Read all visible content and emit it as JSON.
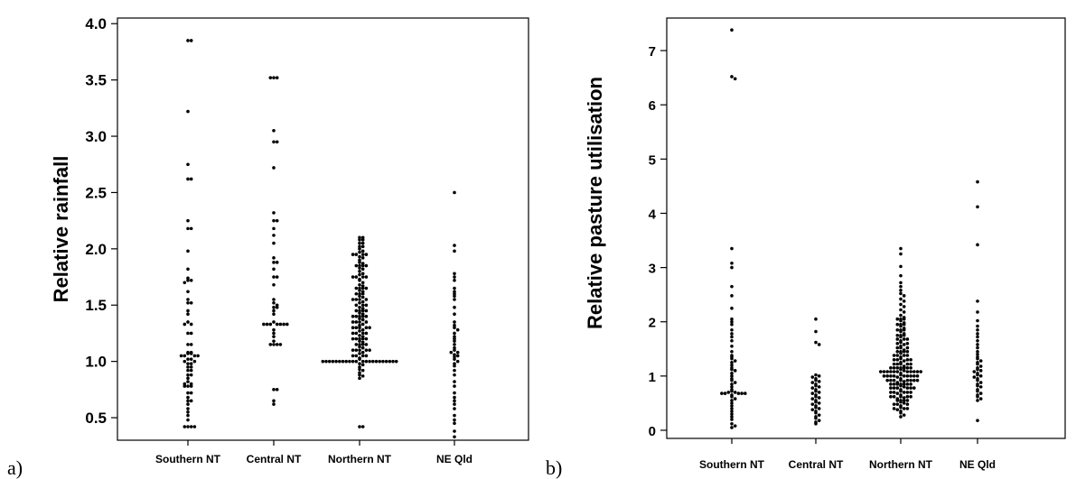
{
  "chart_data": [
    {
      "type": "scatter",
      "panel_label": "a)",
      "ylabel": "Relative rainfall",
      "categories": [
        "Southern NT",
        "Central NT",
        "Northern NT",
        "NE Qld"
      ],
      "ylim": [
        0.3,
        4.05
      ],
      "yticks": [
        "0.5",
        "1.0",
        "1.5",
        "2.0",
        "2.5",
        "3.0",
        "3.5",
        "4.0"
      ],
      "grid": false,
      "series": [
        {
          "values": [
            3.85,
            3.85,
            3.22,
            2.75,
            2.62,
            2.62,
            2.25,
            2.18,
            2.18,
            1.98,
            1.82,
            1.74,
            1.72,
            1.72,
            1.7,
            1.62,
            1.55,
            1.52,
            1.52,
            1.45,
            1.42,
            1.35,
            1.33,
            1.33,
            1.25,
            1.25,
            1.15,
            1.15,
            1.08,
            1.08,
            1.07,
            1.07,
            1.05,
            1.05,
            1.05,
            1.05,
            1.02,
            1.02,
            1.0,
            1.0,
            0.98,
            0.98,
            0.95,
            0.95,
            0.92,
            0.92,
            0.88,
            0.88,
            0.85,
            0.82,
            0.8,
            0.8,
            0.78,
            0.78,
            0.78,
            0.72,
            0.72,
            0.68,
            0.65,
            0.65,
            0.62,
            0.58,
            0.55,
            0.52,
            0.48,
            0.42,
            0.42,
            0.42,
            0.42
          ]
        },
        {
          "values": [
            3.52,
            3.52,
            3.52,
            3.05,
            2.95,
            2.95,
            2.72,
            2.32,
            2.25,
            2.25,
            2.18,
            2.12,
            2.05,
            1.92,
            1.88,
            1.88,
            1.82,
            1.75,
            1.75,
            1.68,
            1.55,
            1.52,
            1.5,
            1.48,
            1.48,
            1.45,
            1.42,
            1.35,
            1.33,
            1.33,
            1.33,
            1.33,
            1.33,
            1.33,
            1.33,
            1.28,
            1.25,
            1.22,
            1.18,
            1.15,
            1.15,
            1.15,
            1.15,
            0.75,
            0.75,
            0.65,
            0.62
          ]
        },
        {
          "values": [
            2.1,
            2.1,
            2.08,
            2.08,
            2.05,
            2.02,
            2.02,
            2.0,
            1.98,
            1.97,
            1.95,
            1.93,
            1.92,
            1.9,
            1.88,
            1.87,
            1.85,
            1.83,
            1.82,
            1.8,
            1.78,
            1.77,
            1.75,
            1.73,
            1.72,
            1.7,
            1.68,
            1.67,
            1.65,
            1.63,
            1.62,
            1.6,
            1.58,
            1.57,
            1.55,
            1.53,
            1.52,
            1.5,
            1.48,
            1.47,
            1.45,
            1.43,
            1.42,
            1.4,
            1.38,
            1.37,
            1.35,
            1.33,
            1.32,
            1.3,
            1.28,
            1.27,
            1.25,
            1.23,
            1.22,
            1.2,
            1.18,
            1.17,
            1.15,
            1.13,
            1.12,
            1.1,
            1.08,
            1.07,
            1.05,
            1.03,
            1.02,
            1.0,
            0.98,
            0.97,
            0.95,
            0.93,
            0.92,
            0.9,
            0.88,
            0.87,
            0.85,
            0.42,
            0.42,
            2.05,
            1.95,
            1.85,
            1.75,
            1.65,
            1.55,
            1.45,
            1.35,
            1.25,
            1.15,
            1.05,
            1.0,
            1.0,
            1.0,
            1.0,
            1.0,
            1.0,
            1.0,
            1.0,
            1.0,
            1.0,
            1.0,
            1.0,
            1.0,
            1.0,
            1.0,
            1.0,
            1.0,
            1.0,
            1.0,
            1.0,
            1.0,
            1.1,
            1.1,
            1.2,
            1.2,
            1.3,
            1.3,
            1.4,
            1.4,
            1.5,
            1.5,
            1.6,
            1.6,
            1.4,
            1.4,
            1.3,
            1.3,
            1.2,
            1.2,
            1.1,
            1.1,
            1.45,
            1.45,
            1.35,
            1.35,
            1.25,
            1.25,
            1.15,
            1.15,
            1.05,
            1.05,
            1.55,
            1.55,
            1.65,
            1.65,
            1.75,
            1.75,
            1.85,
            1.85,
            1.95,
            1.95
          ]
        },
        {
          "values": [
            2.5,
            2.03,
            1.98,
            1.78,
            1.75,
            1.72,
            1.65,
            1.62,
            1.6,
            1.58,
            1.55,
            1.48,
            1.42,
            1.35,
            1.32,
            1.3,
            1.28,
            1.25,
            1.22,
            1.2,
            1.18,
            1.15,
            1.12,
            1.1,
            1.08,
            1.08,
            1.06,
            1.05,
            1.04,
            1.02,
            1.0,
            0.98,
            0.96,
            0.92,
            0.88,
            0.82,
            0.78,
            0.72,
            0.68,
            0.65,
            0.62,
            0.58,
            0.52,
            0.48,
            0.45,
            0.38,
            0.33
          ]
        }
      ]
    },
    {
      "type": "scatter",
      "panel_label": "b)",
      "ylabel": "Relative pasture utilisation",
      "categories": [
        "Southern NT",
        "Central NT",
        "Northern NT",
        "NE Qld"
      ],
      "ylim": [
        -0.15,
        7.6
      ],
      "yticks": [
        "0",
        "1",
        "2",
        "3",
        "4",
        "5",
        "6",
        "7"
      ],
      "grid": false,
      "series": [
        {
          "values": [
            7.38,
            6.52,
            6.48,
            3.35,
            3.08,
            3.0,
            2.65,
            2.48,
            2.25,
            2.05,
            2.0,
            1.95,
            1.85,
            1.78,
            1.72,
            1.65,
            1.55,
            1.45,
            1.38,
            1.35,
            1.32,
            1.28,
            1.25,
            1.2,
            1.15,
            1.12,
            1.1,
            1.05,
            1.0,
            0.95,
            0.92,
            0.88,
            0.85,
            0.8,
            0.75,
            0.72,
            0.7,
            0.7,
            0.68,
            0.68,
            0.68,
            0.68,
            0.68,
            0.65,
            0.62,
            0.58,
            0.55,
            0.5,
            0.45,
            0.4,
            0.35,
            0.3,
            0.25,
            0.2,
            0.12,
            0.08,
            0.05
          ]
        },
        {
          "values": [
            2.05,
            1.82,
            1.62,
            1.58,
            1.02,
            1.0,
            0.98,
            0.95,
            0.92,
            0.9,
            0.88,
            0.85,
            0.82,
            0.8,
            0.78,
            0.75,
            0.72,
            0.7,
            0.68,
            0.65,
            0.62,
            0.6,
            0.58,
            0.55,
            0.52,
            0.5,
            0.48,
            0.45,
            0.42,
            0.4,
            0.38,
            0.35,
            0.32,
            0.28,
            0.25,
            0.22,
            0.18,
            0.15,
            0.12
          ]
        },
        {
          "values": [
            3.35,
            3.25,
            3.02,
            2.85,
            2.72,
            2.65,
            2.58,
            2.52,
            2.48,
            2.42,
            2.38,
            2.32,
            2.28,
            2.22,
            2.18,
            2.12,
            2.08,
            2.05,
            2.02,
            1.98,
            1.95,
            1.92,
            1.88,
            1.85,
            1.82,
            1.78,
            1.75,
            1.72,
            1.68,
            1.65,
            1.62,
            1.58,
            1.55,
            1.52,
            1.48,
            1.45,
            1.42,
            1.38,
            1.35,
            1.32,
            1.28,
            1.25,
            1.22,
            1.18,
            1.15,
            1.12,
            1.1,
            1.08,
            1.05,
            1.02,
            1.0,
            0.98,
            0.95,
            0.92,
            0.9,
            0.88,
            0.85,
            0.82,
            0.8,
            0.78,
            0.75,
            0.72,
            0.7,
            0.68,
            0.65,
            0.62,
            0.6,
            0.58,
            0.55,
            0.52,
            0.5,
            0.48,
            0.45,
            0.42,
            0.4,
            0.38,
            0.35,
            0.32,
            0.28,
            0.25,
            1.08,
            1.08,
            1.08,
            1.08,
            1.08,
            1.08,
            1.08,
            1.08,
            1.08,
            1.08,
            1.0,
            1.0,
            1.0,
            1.0,
            1.0,
            1.0,
            1.0,
            1.0,
            0.92,
            0.92,
            0.92,
            0.92,
            0.92,
            0.92,
            0.92,
            0.85,
            0.85,
            0.85,
            0.85,
            0.85,
            0.85,
            0.78,
            0.78,
            0.78,
            0.78,
            0.78,
            0.7,
            0.7,
            0.7,
            0.7,
            0.62,
            0.62,
            0.62,
            0.62,
            1.15,
            1.15,
            1.15,
            1.15,
            1.15,
            1.15,
            1.22,
            1.22,
            1.22,
            1.22,
            1.3,
            1.3,
            1.3,
            1.3,
            1.38,
            1.38,
            1.38,
            1.45,
            1.45,
            1.45,
            1.52,
            1.52,
            1.6,
            1.6,
            1.68,
            1.68,
            1.75,
            1.75,
            1.85,
            1.85,
            1.95,
            1.95,
            2.05,
            2.05,
            0.55,
            0.55,
            0.55,
            0.48,
            0.48,
            0.4,
            0.4
          ]
        },
        {
          "values": [
            4.58,
            4.12,
            3.42,
            2.38,
            2.18,
            2.02,
            1.92,
            1.85,
            1.78,
            1.72,
            1.65,
            1.58,
            1.52,
            1.45,
            1.4,
            1.35,
            1.32,
            1.28,
            1.25,
            1.22,
            1.18,
            1.15,
            1.12,
            1.1,
            1.08,
            1.05,
            1.02,
            1.0,
            0.98,
            0.95,
            0.92,
            0.88,
            0.85,
            0.82,
            0.8,
            0.75,
            0.72,
            0.68,
            0.65,
            0.62,
            0.58,
            0.55,
            0.18
          ]
        }
      ]
    }
  ]
}
